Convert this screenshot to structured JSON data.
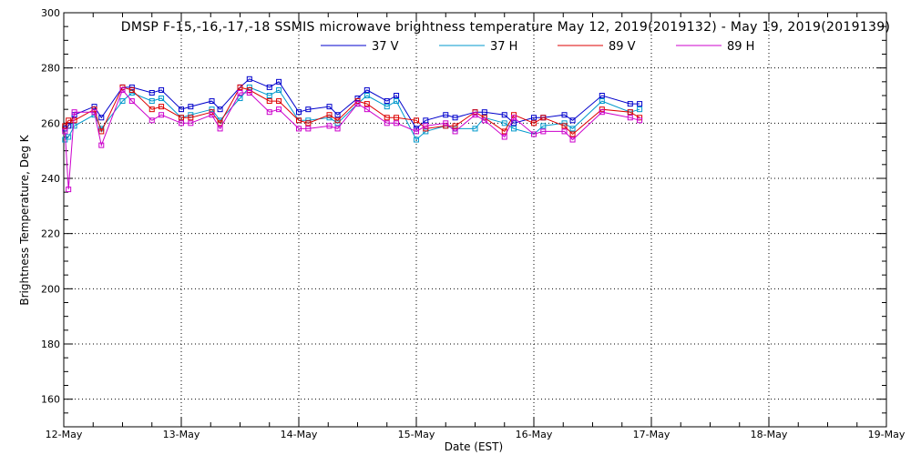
{
  "chart_data": {
    "type": "line",
    "title": "DMSP F-15,-16,-17,-18 SSMIS microwave brightness temperature May 12, 2019(2019132) - May 19, 2019(2019139)",
    "xlabel": "Date (EST)",
    "ylabel": "Brightness Temperature, Deg K",
    "xlim": [
      0,
      7
    ],
    "ylim": [
      150,
      300
    ],
    "x_ticks": [
      "12-May",
      "13-May",
      "14-May",
      "15-May",
      "16-May",
      "17-May",
      "18-May",
      "19-May"
    ],
    "y_ticks": [
      160,
      180,
      200,
      220,
      240,
      260,
      280,
      300
    ],
    "grid": true,
    "legend_position": "top-center",
    "x": [
      0.01,
      0.04,
      0.09,
      0.26,
      0.32,
      0.5,
      0.58,
      0.75,
      0.83,
      1.0,
      1.08,
      1.26,
      1.33,
      1.5,
      1.58,
      1.75,
      1.83,
      2.0,
      2.08,
      2.26,
      2.33,
      2.5,
      2.58,
      2.75,
      2.83,
      3.0,
      3.08,
      3.25,
      3.33,
      3.5,
      3.58,
      3.75,
      3.83,
      4.0,
      4.08,
      4.26,
      4.33,
      4.58,
      4.82,
      4.9
    ],
    "series": [
      {
        "name": "37 V",
        "color": "#0000cc",
        "values": [
          258,
          259,
          263,
          266,
          262,
          273,
          273,
          271,
          272,
          265,
          266,
          268,
          265,
          273,
          276,
          273,
          275,
          264,
          265,
          266,
          263,
          269,
          272,
          268,
          270,
          258,
          261,
          263,
          262,
          264,
          264,
          263,
          260,
          262,
          262,
          263,
          261,
          270,
          267,
          267
        ]
      },
      {
        "name": "37 H",
        "color": "#0099cc",
        "values": [
          254,
          255,
          259,
          263,
          258,
          268,
          271,
          268,
          269,
          262,
          263,
          265,
          261,
          269,
          273,
          270,
          272,
          261,
          261,
          262,
          260,
          267,
          270,
          266,
          268,
          254,
          257,
          259,
          258,
          258,
          262,
          260,
          258,
          256,
          259,
          260,
          258,
          268,
          264,
          265
        ]
      },
      {
        "name": "89 V",
        "color": "#dd0000",
        "values": [
          259,
          261,
          261,
          265,
          257,
          273,
          272,
          265,
          266,
          262,
          262,
          264,
          260,
          273,
          272,
          268,
          268,
          261,
          260,
          263,
          261,
          268,
          267,
          262,
          262,
          261,
          258,
          259,
          259,
          264,
          262,
          257,
          263,
          260,
          262,
          259,
          256,
          265,
          264,
          262
        ]
      },
      {
        "name": "89 H",
        "color": "#cc00cc",
        "values": [
          257,
          236,
          264,
          264,
          252,
          272,
          268,
          261,
          263,
          260,
          260,
          263,
          258,
          271,
          271,
          264,
          265,
          258,
          258,
          259,
          258,
          267,
          265,
          260,
          260,
          257,
          259,
          260,
          257,
          263,
          261,
          255,
          262,
          256,
          257,
          257,
          254,
          264,
          262,
          261
        ]
      }
    ]
  }
}
